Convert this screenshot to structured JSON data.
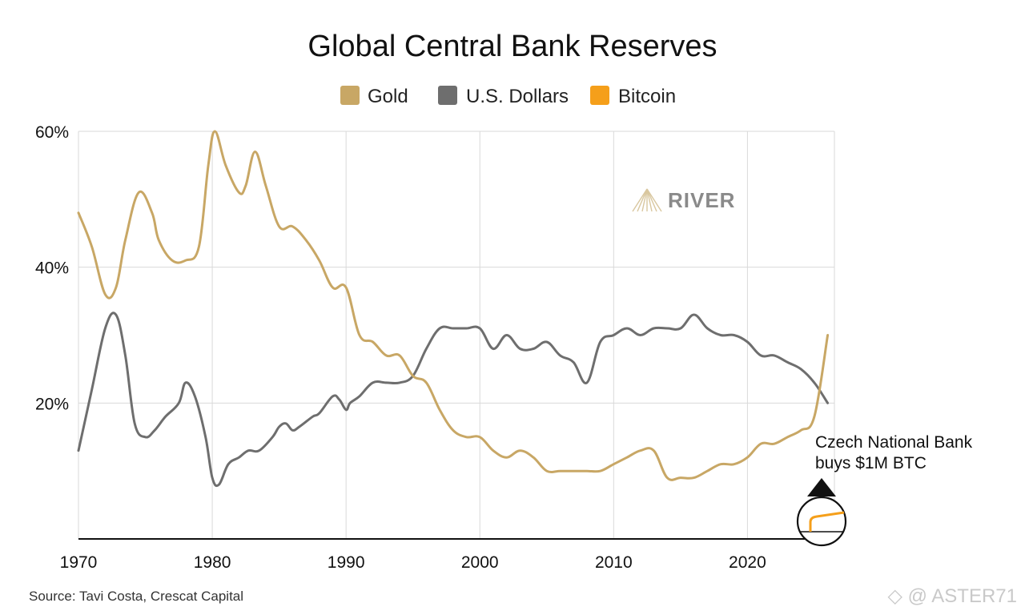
{
  "chart_data": {
    "type": "line",
    "title": "Global Central Bank Reserves",
    "legend": {
      "placement": "top-center"
    },
    "xlabel": "",
    "ylabel": "",
    "xlim": [
      1970,
      2026.5
    ],
    "ylim": [
      0,
      60
    ],
    "x_ticks": [
      1970,
      1980,
      1990,
      2000,
      2010,
      2020
    ],
    "x_tick_labels": [
      "1970",
      "1980",
      "1990",
      "2000",
      "2010",
      "2020"
    ],
    "y_ticks": [
      20,
      40,
      60
    ],
    "y_tick_labels": [
      "20%",
      "40%",
      "60%"
    ],
    "grid": true,
    "colors": {
      "gold": "#c8a765",
      "usd": "#6e6e6e",
      "bitcoin": "#f59f1a",
      "grid": "#d9d9d9",
      "axis": "#111111"
    },
    "series": [
      {
        "name": "Gold",
        "color": "#c8a765",
        "points": [
          [
            1970,
            48
          ],
          [
            1971,
            43
          ],
          [
            1972,
            36
          ],
          [
            1972.8,
            37
          ],
          [
            1973.5,
            44
          ],
          [
            1974.5,
            51
          ],
          [
            1975.5,
            48
          ],
          [
            1976,
            44
          ],
          [
            1977,
            41
          ],
          [
            1978,
            41
          ],
          [
            1979,
            43
          ],
          [
            1979.7,
            55
          ],
          [
            1980.2,
            60
          ],
          [
            1981,
            55
          ],
          [
            1982,
            51
          ],
          [
            1982.5,
            52
          ],
          [
            1983.2,
            57
          ],
          [
            1984,
            52
          ],
          [
            1985,
            46
          ],
          [
            1986,
            46
          ],
          [
            1987,
            44
          ],
          [
            1988,
            41
          ],
          [
            1989,
            37
          ],
          [
            1990,
            37
          ],
          [
            1991,
            30
          ],
          [
            1992,
            29
          ],
          [
            1993,
            27
          ],
          [
            1994,
            27
          ],
          [
            1995,
            24
          ],
          [
            1996,
            23
          ],
          [
            1997,
            19
          ],
          [
            1998,
            16
          ],
          [
            1999,
            15
          ],
          [
            2000,
            15
          ],
          [
            2001,
            13
          ],
          [
            2002,
            12
          ],
          [
            2003,
            13
          ],
          [
            2004,
            12
          ],
          [
            2005,
            10
          ],
          [
            2006,
            10
          ],
          [
            2007,
            10
          ],
          [
            2008,
            10
          ],
          [
            2009,
            10
          ],
          [
            2010,
            11
          ],
          [
            2011,
            12
          ],
          [
            2012,
            13
          ],
          [
            2013,
            13
          ],
          [
            2014,
            9
          ],
          [
            2015,
            9
          ],
          [
            2016,
            9
          ],
          [
            2017,
            10
          ],
          [
            2018,
            11
          ],
          [
            2019,
            11
          ],
          [
            2020,
            12
          ],
          [
            2021,
            14
          ],
          [
            2022,
            14
          ],
          [
            2023,
            15
          ],
          [
            2024,
            16
          ],
          [
            2025,
            18
          ],
          [
            2026,
            30
          ]
        ]
      },
      {
        "name": "U.S. Dollars",
        "color": "#6e6e6e",
        "points": [
          [
            1970,
            13
          ],
          [
            1971,
            22
          ],
          [
            1972,
            31
          ],
          [
            1972.8,
            33
          ],
          [
            1973.5,
            27
          ],
          [
            1974.2,
            17
          ],
          [
            1975,
            15
          ],
          [
            1975.7,
            16
          ],
          [
            1976.5,
            18
          ],
          [
            1977.5,
            20
          ],
          [
            1978,
            23
          ],
          [
            1978.7,
            21
          ],
          [
            1979.5,
            15
          ],
          [
            1980,
            9
          ],
          [
            1980.5,
            8
          ],
          [
            1981.2,
            11
          ],
          [
            1982,
            12
          ],
          [
            1982.7,
            13
          ],
          [
            1983.5,
            13
          ],
          [
            1984.5,
            15
          ],
          [
            1985,
            16.5
          ],
          [
            1985.5,
            17
          ],
          [
            1986,
            16
          ],
          [
            1986.5,
            16.5
          ],
          [
            1987.5,
            18
          ],
          [
            1988,
            18.5
          ],
          [
            1989,
            21
          ],
          [
            1989.5,
            20.5
          ],
          [
            1990,
            19
          ],
          [
            1990.3,
            20
          ],
          [
            1991,
            21
          ],
          [
            1992,
            23
          ],
          [
            1993,
            23
          ],
          [
            1994,
            23
          ],
          [
            1995,
            24
          ],
          [
            1996,
            28
          ],
          [
            1997,
            31
          ],
          [
            1998,
            31
          ],
          [
            1999,
            31
          ],
          [
            2000,
            31
          ],
          [
            2001,
            28
          ],
          [
            2002,
            30
          ],
          [
            2003,
            28
          ],
          [
            2004,
            28
          ],
          [
            2005,
            29
          ],
          [
            2006,
            27
          ],
          [
            2007,
            26
          ],
          [
            2008,
            23
          ],
          [
            2009,
            29
          ],
          [
            2010,
            30
          ],
          [
            2011,
            31
          ],
          [
            2012,
            30
          ],
          [
            2013,
            31
          ],
          [
            2014,
            31
          ],
          [
            2015,
            31
          ],
          [
            2016,
            33
          ],
          [
            2017,
            31
          ],
          [
            2018,
            30
          ],
          [
            2019,
            30
          ],
          [
            2020,
            29
          ],
          [
            2021,
            27
          ],
          [
            2022,
            27
          ],
          [
            2023,
            26
          ],
          [
            2024,
            25
          ],
          [
            2025,
            23
          ],
          [
            2026,
            20
          ]
        ]
      },
      {
        "name": "Bitcoin",
        "color": "#f59f1a",
        "points": []
      }
    ],
    "annotation": {
      "lines": [
        "Czech National Bank",
        "buys $1M BTC"
      ],
      "x": 2025
    },
    "source": "Source: Tavi Costa, Crescat Capital",
    "logo": {
      "text": "RIVER"
    }
  },
  "watermark": "◇ @ ASTER71"
}
